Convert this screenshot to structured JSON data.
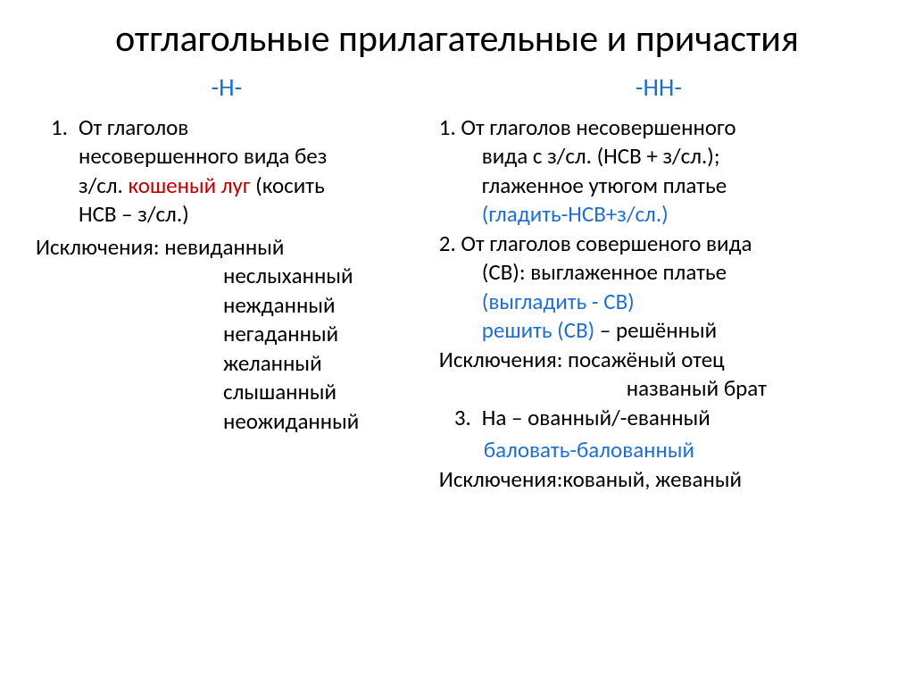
{
  "title": "отглагольные прилагательные и причастия",
  "colors": {
    "blue": "#1f6fd1",
    "red": "#c00000",
    "text": "#000000",
    "background": "#ffffff"
  },
  "typography": {
    "title_fontsize": 42,
    "body_fontsize": 25,
    "header_fontsize": 28,
    "font_family": "Calibri"
  },
  "left": {
    "header": "-Н-",
    "item1_num": "1.",
    "item1_l1": "От глаголов",
    "item1_l2": "несовершенного вида без",
    "item1_l3a": "з/сл.  ",
    "item1_l3_red": "кошеный луг",
    "item1_l3b": " (косить",
    "item1_l4": "НСВ – з/сл.)",
    "exc_label": "Исключения: ",
    "exc1": "невиданный",
    "exc2": "неслыханный",
    "exc3": "нежданный",
    "exc4": "негаданный",
    "exc5": "желанный",
    "exc6": "слышанный",
    "exc7": "неожиданный"
  },
  "right": {
    "header": "-НН-",
    "i1_l1": "1. От глаголов несовершенного",
    "i1_l2": "вида с з/сл. (НСВ + з/сл.);",
    "i1_l3": "глаженное утюгом платье",
    "i1_l4_blue": "(гладить-НСВ+з/сл.)",
    "i2_l1": "2. От глаголов совершеного вида",
    "i2_l2": "(СВ): выглаженное платье",
    "i2_l3_blue": "(выгладить - СВ)",
    "i2_l4_blue": "решить (СВ)",
    "i2_l4b": " – решённый",
    "exc_l1": "Исключения: посажёный отец",
    "exc_l2": "названый брат",
    "i3_num": "3.",
    "i3_l1": "На – ованный/-еванный",
    "i3_l2_blue": "баловать-балованный",
    "exc2_l1": "Исключения:кованый, жеваный"
  }
}
